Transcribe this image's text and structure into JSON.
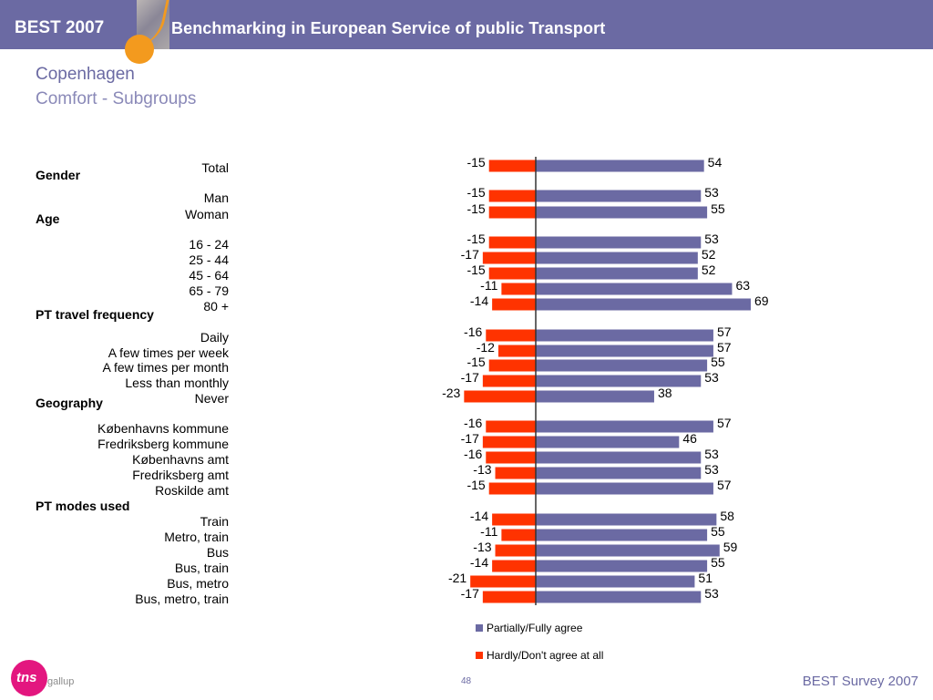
{
  "header": {
    "brand": "BEST 2007",
    "banner": "Benchmarking in European Service of public Transport"
  },
  "page": {
    "title": "Copenhagen",
    "subtitle": "Comfort - Subgroups",
    "page_number": "48",
    "footer": "BEST Survey 2007",
    "logo_mark": "tns",
    "logo_sub": "gallup"
  },
  "colors": {
    "header": "#6b6aa3",
    "agree": "#6b6aa3",
    "disagree": "#ff3300",
    "accent": "#f39a1e",
    "logo": "#e3167f"
  },
  "chart_data": {
    "type": "bar",
    "orientation": "horizontal",
    "diverging": true,
    "xlim": [
      -25,
      70
    ],
    "legend_position": "bottom",
    "legend": [
      "Partially/Fully agree",
      "Hardly/Don't agree at all"
    ],
    "groups": [
      {
        "name": "",
        "items": [
          {
            "label": "Total",
            "neg": -15,
            "pos": 54
          }
        ]
      },
      {
        "name": "Gender",
        "items": [
          {
            "label": "Man",
            "neg": -15,
            "pos": 53
          },
          {
            "label": "Woman",
            "neg": -15,
            "pos": 55
          }
        ]
      },
      {
        "name": "Age",
        "items": [
          {
            "label": "16 - 24",
            "neg": -15,
            "pos": 53
          },
          {
            "label": "25 - 44",
            "neg": -17,
            "pos": 52
          },
          {
            "label": "45 - 64",
            "neg": -15,
            "pos": 52
          },
          {
            "label": "65 - 79",
            "neg": -11,
            "pos": 63
          },
          {
            "label": "80 +",
            "neg": -14,
            "pos": 69
          }
        ]
      },
      {
        "name": "PT travel frequency",
        "items": [
          {
            "label": "Daily",
            "neg": -16,
            "pos": 57
          },
          {
            "label": "A few times per week",
            "neg": -12,
            "pos": 57
          },
          {
            "label": "A few times per month",
            "neg": -15,
            "pos": 55
          },
          {
            "label": "Less than monthly",
            "neg": -17,
            "pos": 53
          },
          {
            "label": "Never",
            "neg": -23,
            "pos": 38
          }
        ]
      },
      {
        "name": "Geography",
        "items": [
          {
            "label": "Københavns kommune",
            "neg": -16,
            "pos": 57
          },
          {
            "label": "Fredriksberg kommune",
            "neg": -17,
            "pos": 46
          },
          {
            "label": "Københavns amt",
            "neg": -16,
            "pos": 53
          },
          {
            "label": "Fredriksberg amt",
            "neg": -13,
            "pos": 53
          },
          {
            "label": "Roskilde amt",
            "neg": -15,
            "pos": 57
          }
        ]
      },
      {
        "name": "PT modes used",
        "items": [
          {
            "label": "Train",
            "neg": -14,
            "pos": 58
          },
          {
            "label": "Metro, train",
            "neg": -11,
            "pos": 55
          },
          {
            "label": "Bus",
            "neg": -13,
            "pos": 59
          },
          {
            "label": "Bus, train",
            "neg": -14,
            "pos": 55
          },
          {
            "label": "Bus, metro",
            "neg": -21,
            "pos": 51
          },
          {
            "label": "Bus, metro, train",
            "neg": -17,
            "pos": 53
          }
        ]
      }
    ]
  }
}
